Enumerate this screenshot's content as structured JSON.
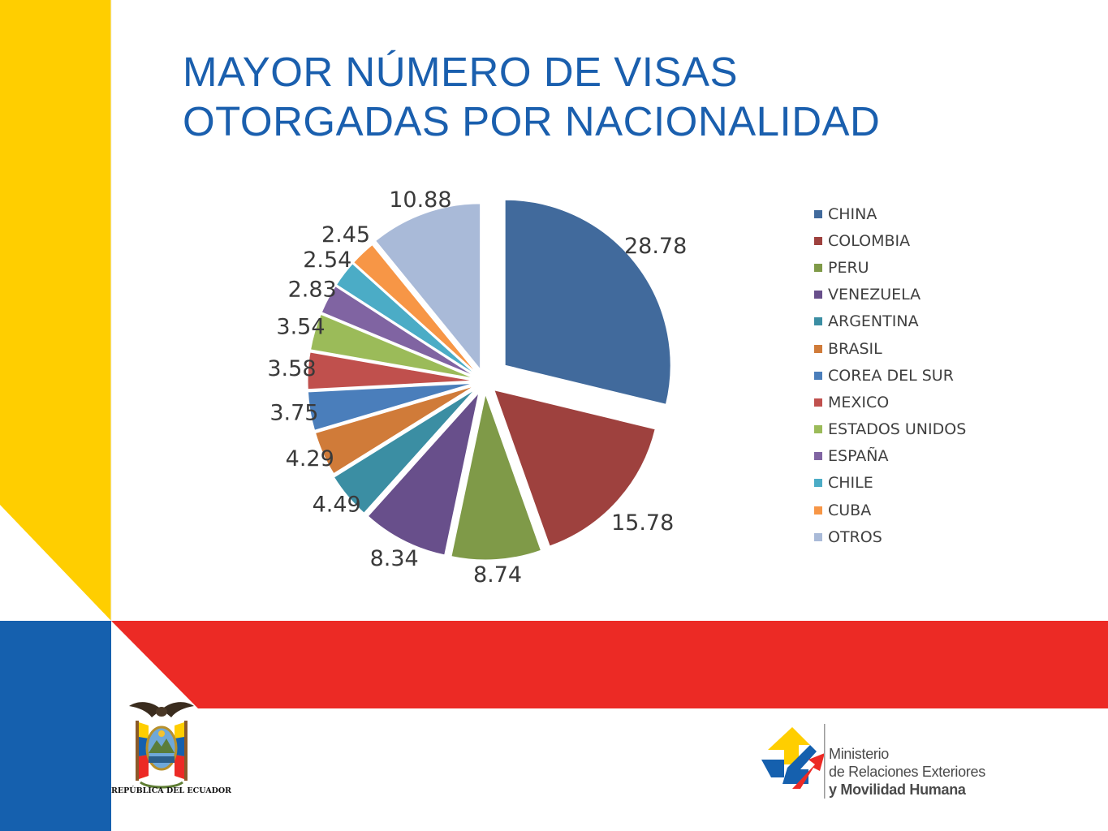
{
  "slide": {
    "title_line1": "MAYOR NÚMERO DE VISAS",
    "title_line2": "OTORGADAS POR NACIONALIDAD"
  },
  "colors": {
    "ecuador_yellow": "#ffce00",
    "ecuador_blue": "#1560ae",
    "ecuador_red": "#ec2a25",
    "title_blue": "#1a5fae"
  },
  "footer": {
    "seal_caption": "REPÚBLICA DEL ECUADOR",
    "ministry_line1": "Ministerio",
    "ministry_line2": "de Relaciones Exteriores",
    "ministry_line3": "y Movilidad Humana"
  },
  "chart_data": {
    "type": "pie",
    "exploded": true,
    "legend_position": "right",
    "labels": [
      "CHINA",
      "COLOMBIA",
      "PERU",
      "VENEZUELA",
      "ARGENTINA",
      "BRASIL",
      "COREA DEL SUR",
      "MEXICO",
      "ESTADOS UNIDOS",
      "ESPAÑA",
      "CHILE",
      "CUBA",
      "OTROS"
    ],
    "values": [
      28.78,
      15.78,
      8.74,
      8.34,
      4.49,
      4.29,
      3.75,
      3.58,
      3.54,
      2.83,
      2.54,
      2.45,
      10.88
    ],
    "value_labels": [
      "28.78",
      "15.78",
      "8.74",
      "8.34",
      "4.49",
      "4.29",
      "3.75",
      "3.58",
      "3.54",
      "2.83",
      "2.54",
      "2.45",
      "10.88"
    ],
    "colors": [
      "#416a9c",
      "#9e413e",
      "#7f9a48",
      "#684f8b",
      "#3b8ea3",
      "#d07b39",
      "#4a7ebb",
      "#c0504d",
      "#9bbb59",
      "#8064a2",
      "#4bacc6",
      "#f79646",
      "#a9bad8"
    ]
  }
}
